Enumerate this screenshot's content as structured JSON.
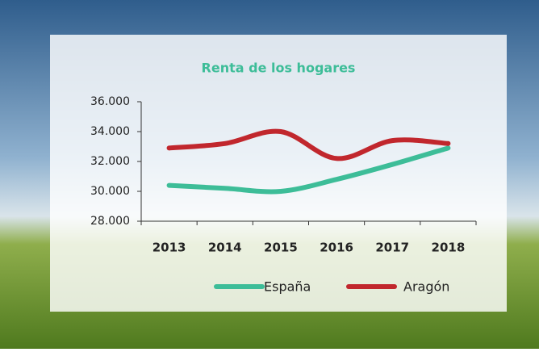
{
  "chart_data": {
    "type": "line",
    "title": "Renta de los hogares",
    "categories": [
      "2013",
      "2014",
      "2015",
      "2016",
      "2017",
      "2018"
    ],
    "series": [
      {
        "name": "España",
        "color": "#3dbd98",
        "values": [
          30400,
          30200,
          30000,
          30800,
          31800,
          32900
        ]
      },
      {
        "name": "Aragón",
        "color": "#c1272d",
        "values": [
          32900,
          33200,
          34000,
          32200,
          33400,
          33200
        ]
      }
    ],
    "ylim": [
      28000,
      36000
    ],
    "yticks": [
      {
        "value": 28000,
        "label": "28.000"
      },
      {
        "value": 30000,
        "label": "30.000"
      },
      {
        "value": 32000,
        "label": "32.000"
      },
      {
        "value": 34000,
        "label": "34.000"
      },
      {
        "value": 36000,
        "label": "36.000"
      }
    ],
    "grid": false,
    "legend": "bottom"
  }
}
